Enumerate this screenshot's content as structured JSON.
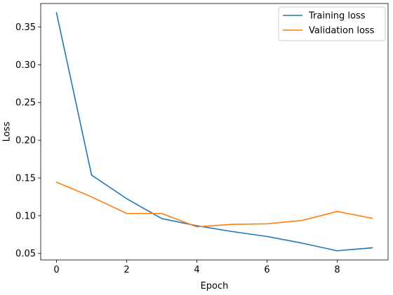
{
  "chart_data": {
    "type": "line",
    "xlabel": "Epoch",
    "ylabel": "Loss",
    "x": [
      0,
      1,
      2,
      3,
      4,
      5,
      6,
      7,
      8,
      9
    ],
    "xlim": [
      -0.45,
      9.45
    ],
    "ylim": [
      0.0414,
      0.3811
    ],
    "xticks": [
      0,
      2,
      4,
      6,
      8
    ],
    "yticks": [
      0.05,
      0.1,
      0.15,
      0.2,
      0.25,
      0.3,
      0.35
    ],
    "xtick_labels": [
      "0",
      "2",
      "4",
      "6",
      "8"
    ],
    "ytick_labels": [
      "0.05",
      "0.10",
      "0.15",
      "0.20",
      "0.25",
      "0.30",
      "0.35"
    ],
    "grid": false,
    "legend_position": "top-right",
    "series": [
      {
        "name": "Training loss",
        "color": "#1f77b4",
        "values": [
          0.3688,
          0.1538,
          0.1226,
          0.0962,
          0.0867,
          0.0791,
          0.0725,
          0.0637,
          0.0536,
          0.0575
        ]
      },
      {
        "name": "Validation loss",
        "color": "#ff7f0e",
        "values": [
          0.1444,
          0.125,
          0.103,
          0.103,
          0.0853,
          0.0886,
          0.0893,
          0.0938,
          0.1056,
          0.0966
        ]
      }
    ]
  }
}
